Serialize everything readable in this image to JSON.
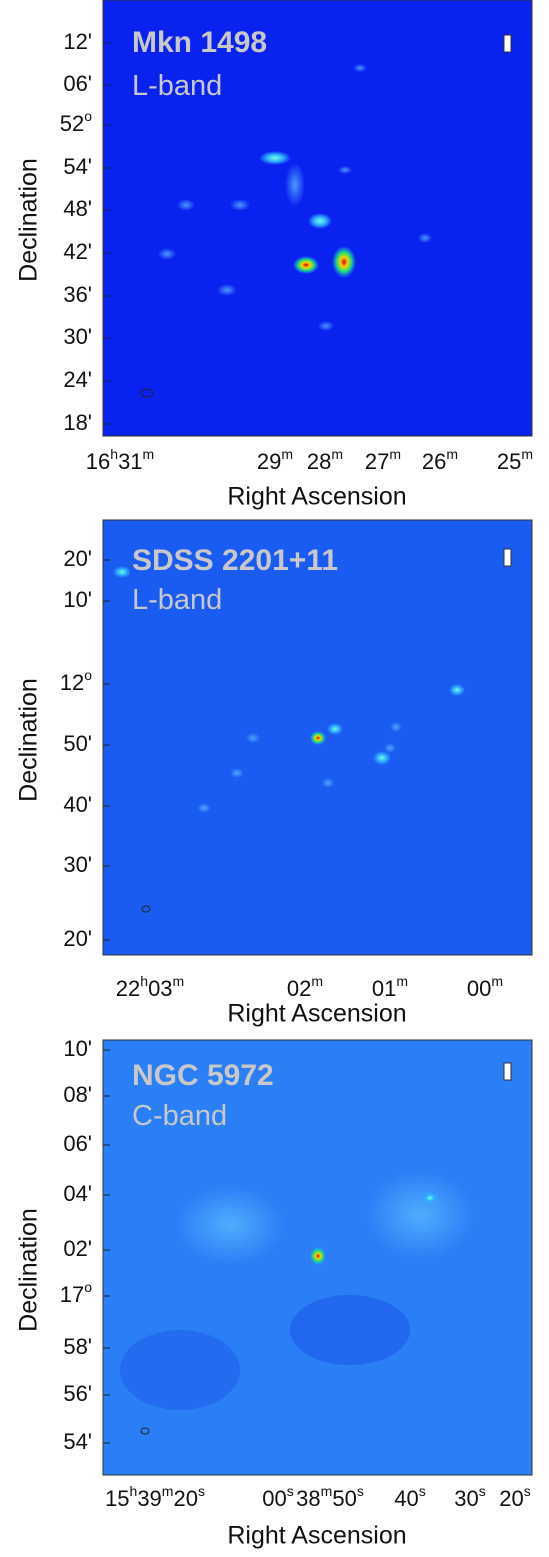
{
  "panels": [
    {
      "title": "Mkn 1498",
      "band": "L-band",
      "y_axis_label": "Declination",
      "x_axis_label": "Right Ascension",
      "yticks": [
        [
          "12'"
        ],
        [
          "06'"
        ],
        [
          "52",
          "o"
        ],
        [
          "54'"
        ],
        [
          "48'"
        ],
        [
          "42'"
        ],
        [
          "36'"
        ],
        [
          "30'"
        ],
        [
          "24'"
        ],
        [
          "18'"
        ]
      ],
      "xticks": [
        [
          "16",
          "h",
          "31",
          "m"
        ],
        [
          "29",
          "m"
        ],
        [
          "28",
          "m"
        ],
        [
          "27",
          "m"
        ],
        [
          "26",
          "m"
        ],
        [
          "25",
          "m"
        ]
      ]
    },
    {
      "title": "SDSS 2201+11",
      "band": "L-band",
      "y_axis_label": "Declination",
      "x_axis_label": "Right Ascension",
      "yticks": [
        [
          "20'"
        ],
        [
          "10'"
        ],
        [
          "12",
          "o"
        ],
        [
          "50'"
        ],
        [
          "40'"
        ],
        [
          "30'"
        ],
        [
          "20'"
        ]
      ],
      "xticks": [
        [
          "22",
          "h",
          "03",
          "m"
        ],
        [
          "02",
          "m"
        ],
        [
          "01",
          "m"
        ],
        [
          "00",
          "m"
        ]
      ]
    },
    {
      "title": "NGC 5972",
      "band": "C-band",
      "y_axis_label": "Declination",
      "x_axis_label": "Right Ascension",
      "yticks": [
        [
          "10'"
        ],
        [
          "08'"
        ],
        [
          "06'"
        ],
        [
          "04'"
        ],
        [
          "02'"
        ],
        [
          "17",
          "o"
        ],
        [
          "58'"
        ],
        [
          "56'"
        ],
        [
          "54'"
        ]
      ],
      "xticks": [
        [
          "15",
          "h",
          "39",
          "m",
          "20",
          "s"
        ],
        [
          "00",
          "s"
        ],
        [
          "38",
          "m",
          "50",
          "s"
        ],
        [
          "40",
          "s"
        ],
        [
          "30",
          "s"
        ],
        [
          "20",
          "s"
        ]
      ]
    }
  ]
}
